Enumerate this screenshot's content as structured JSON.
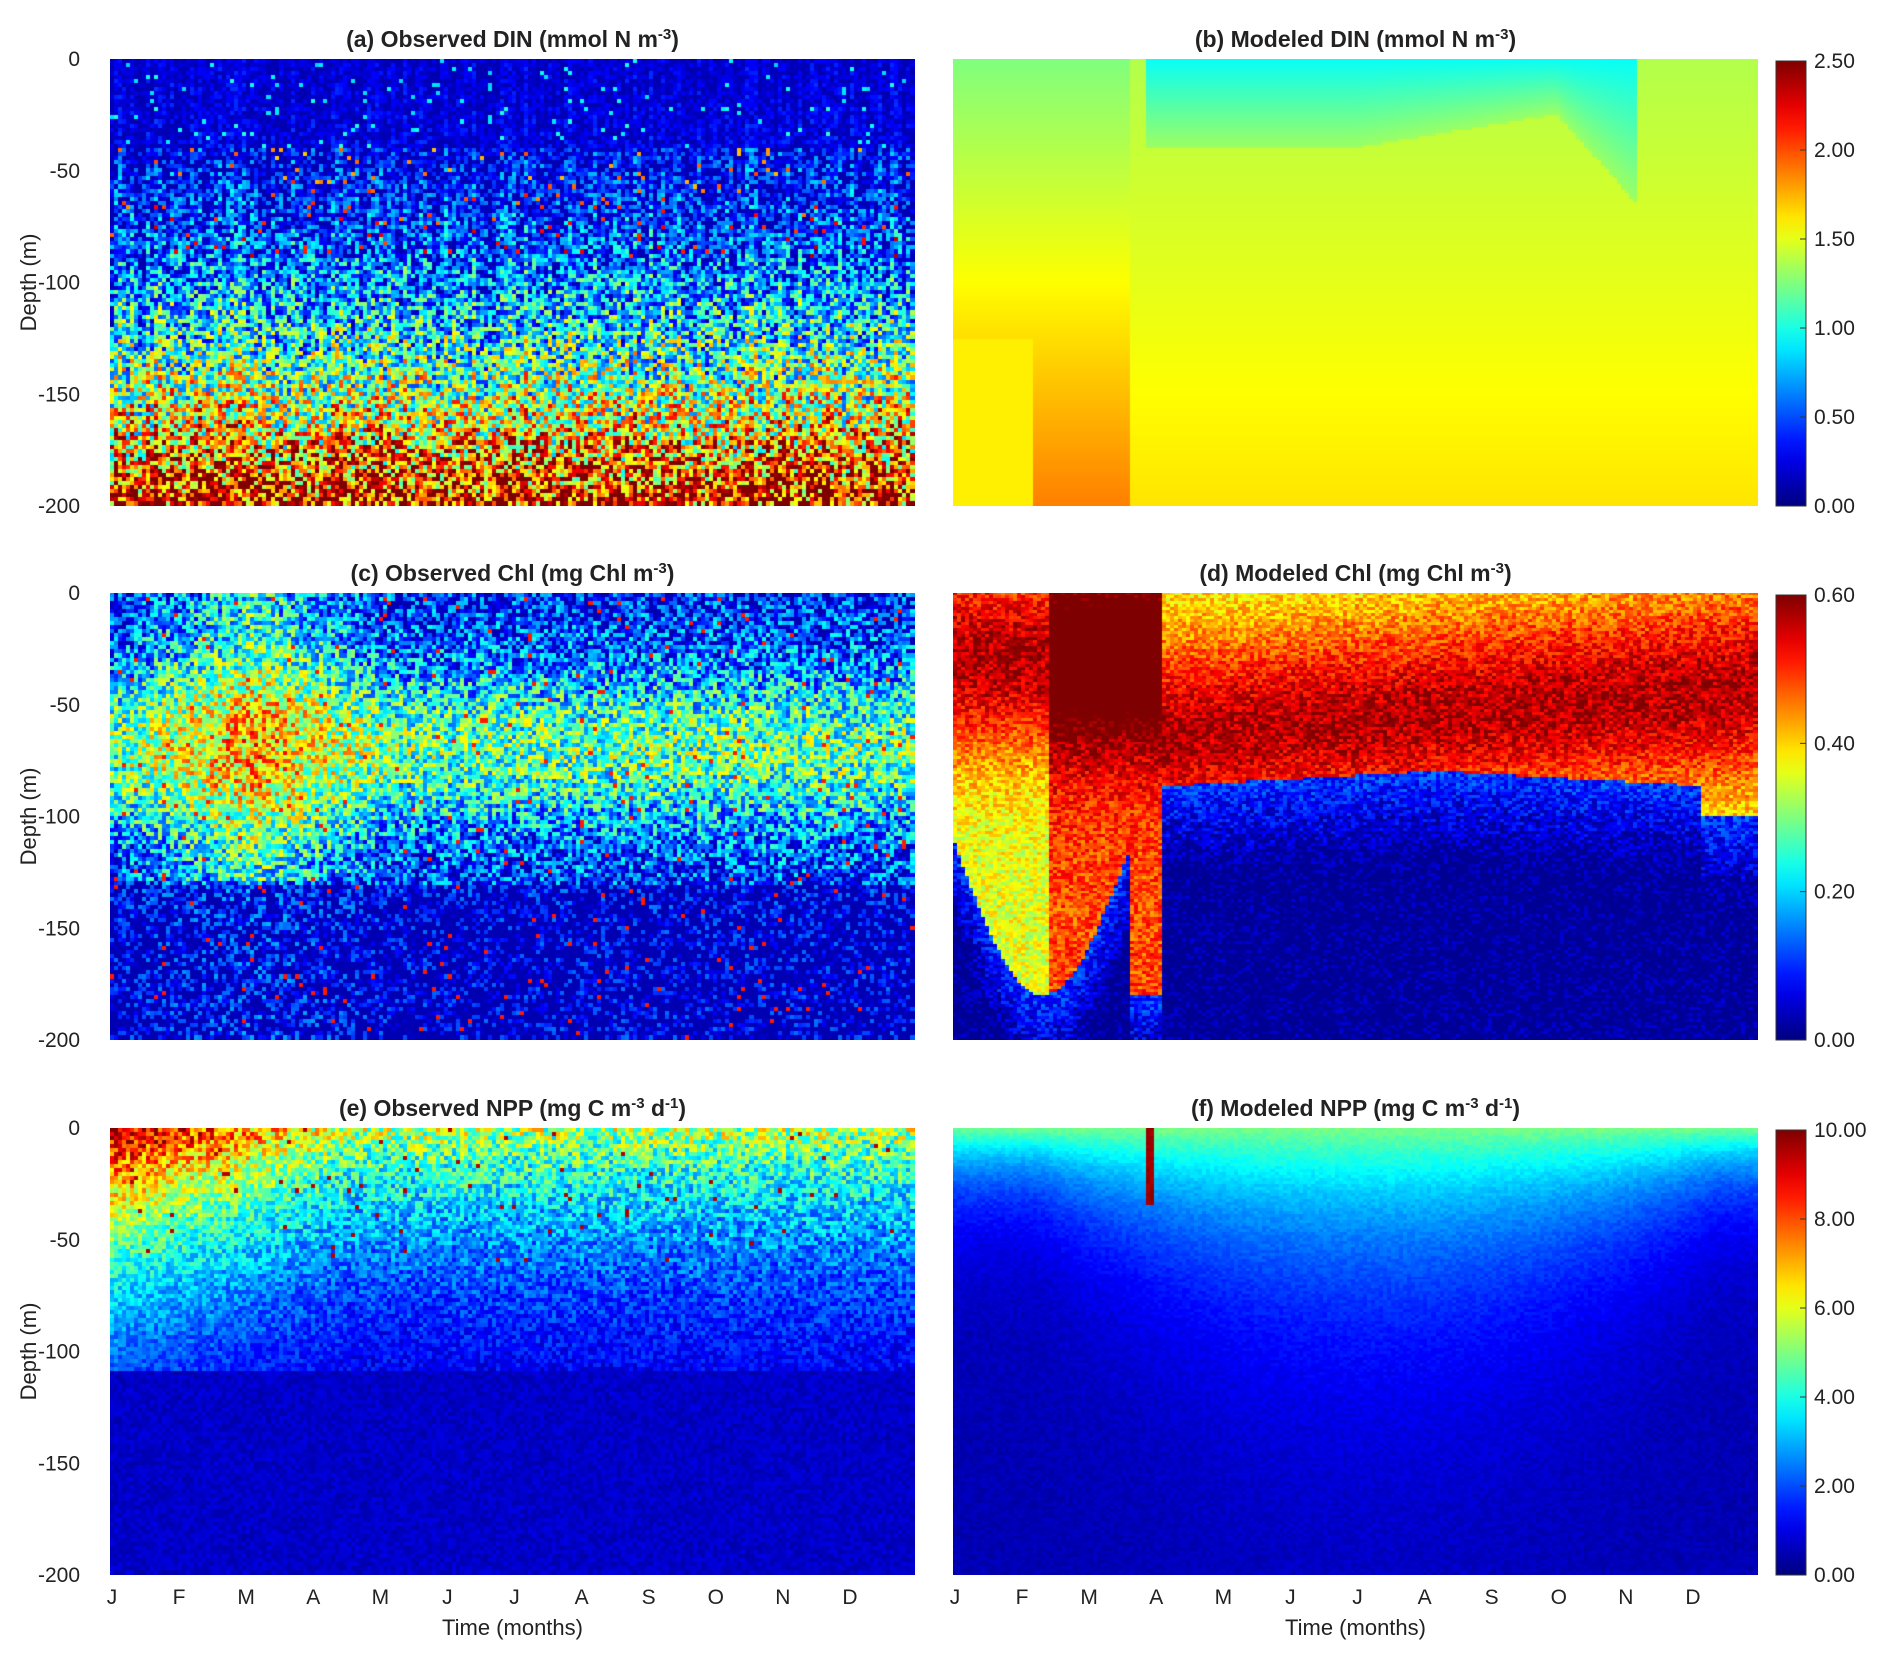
{
  "chart_data": [
    {
      "id": "a",
      "type": "heatmap",
      "title": "(a) Observed DIN",
      "unit_base": "mmol N m",
      "unit_exp": "-3",
      "ylabel": "Depth (m)",
      "ylim": [
        -200,
        0
      ],
      "yticks": [
        "0",
        "-50",
        "-100",
        "-150",
        "-200"
      ],
      "zlim": [
        0,
        2.5
      ],
      "kind": "obs_din",
      "colorbar": false
    },
    {
      "id": "b",
      "type": "heatmap",
      "title": "(b) Modeled DIN",
      "unit_base": "mmol N m",
      "unit_exp": "-3",
      "ylim": [
        -200,
        0
      ],
      "zlim": [
        0,
        2.5
      ],
      "kind": "mod_din",
      "colorbar": true,
      "colorbar_ticks": [
        "2.50",
        "2.00",
        "1.50",
        "1.00",
        "0.50",
        "0.00"
      ]
    },
    {
      "id": "c",
      "type": "heatmap",
      "title": "(c) Observed Chl",
      "unit_base": "mg Chl m",
      "unit_exp": "-3",
      "ylabel": "Depth (m)",
      "ylim": [
        -200,
        0
      ],
      "yticks": [
        "0",
        "-50",
        "-100",
        "-150",
        "-200"
      ],
      "zlim": [
        0,
        0.6
      ],
      "kind": "obs_chl",
      "colorbar": false
    },
    {
      "id": "d",
      "type": "heatmap",
      "title": "(d) Modeled Chl",
      "unit_base": "mg Chl m",
      "unit_exp": "-3",
      "ylim": [
        -200,
        0
      ],
      "zlim": [
        0,
        0.6
      ],
      "kind": "mod_chl",
      "colorbar": true,
      "colorbar_ticks": [
        "0.60",
        "0.40",
        "0.20",
        "0.00"
      ]
    },
    {
      "id": "e",
      "type": "heatmap",
      "title": "(e) Observed NPP",
      "unit_base": "mg C m",
      "unit_exp": "-3",
      "unit_mid": " d",
      "unit_exp2": "-1",
      "ylabel": "Depth (m)",
      "ylim": [
        -200,
        0
      ],
      "yticks": [
        "0",
        "-50",
        "-100",
        "-150",
        "-200"
      ],
      "xlabel": "Time (months)",
      "xticks": [
        "J",
        "F",
        "M",
        "A",
        "M",
        "J",
        "J",
        "A",
        "S",
        "O",
        "N",
        "D"
      ],
      "zlim": [
        0,
        10
      ],
      "kind": "obs_npp",
      "colorbar": false
    },
    {
      "id": "f",
      "type": "heatmap",
      "title": "(f) Modeled NPP",
      "unit_base": "mg C m",
      "unit_exp": "-3",
      "unit_mid": " d",
      "unit_exp2": "-1",
      "ylim": [
        -200,
        0
      ],
      "xlabel": "Time (months)",
      "xticks": [
        "J",
        "F",
        "M",
        "A",
        "M",
        "J",
        "J",
        "A",
        "S",
        "O",
        "N",
        "D"
      ],
      "zlim": [
        0,
        10
      ],
      "kind": "mod_npp",
      "colorbar": true,
      "colorbar_ticks": [
        "10.00",
        "8.00",
        "6.00",
        "4.00",
        "2.00",
        "0.00"
      ]
    }
  ],
  "colormap": "jet"
}
